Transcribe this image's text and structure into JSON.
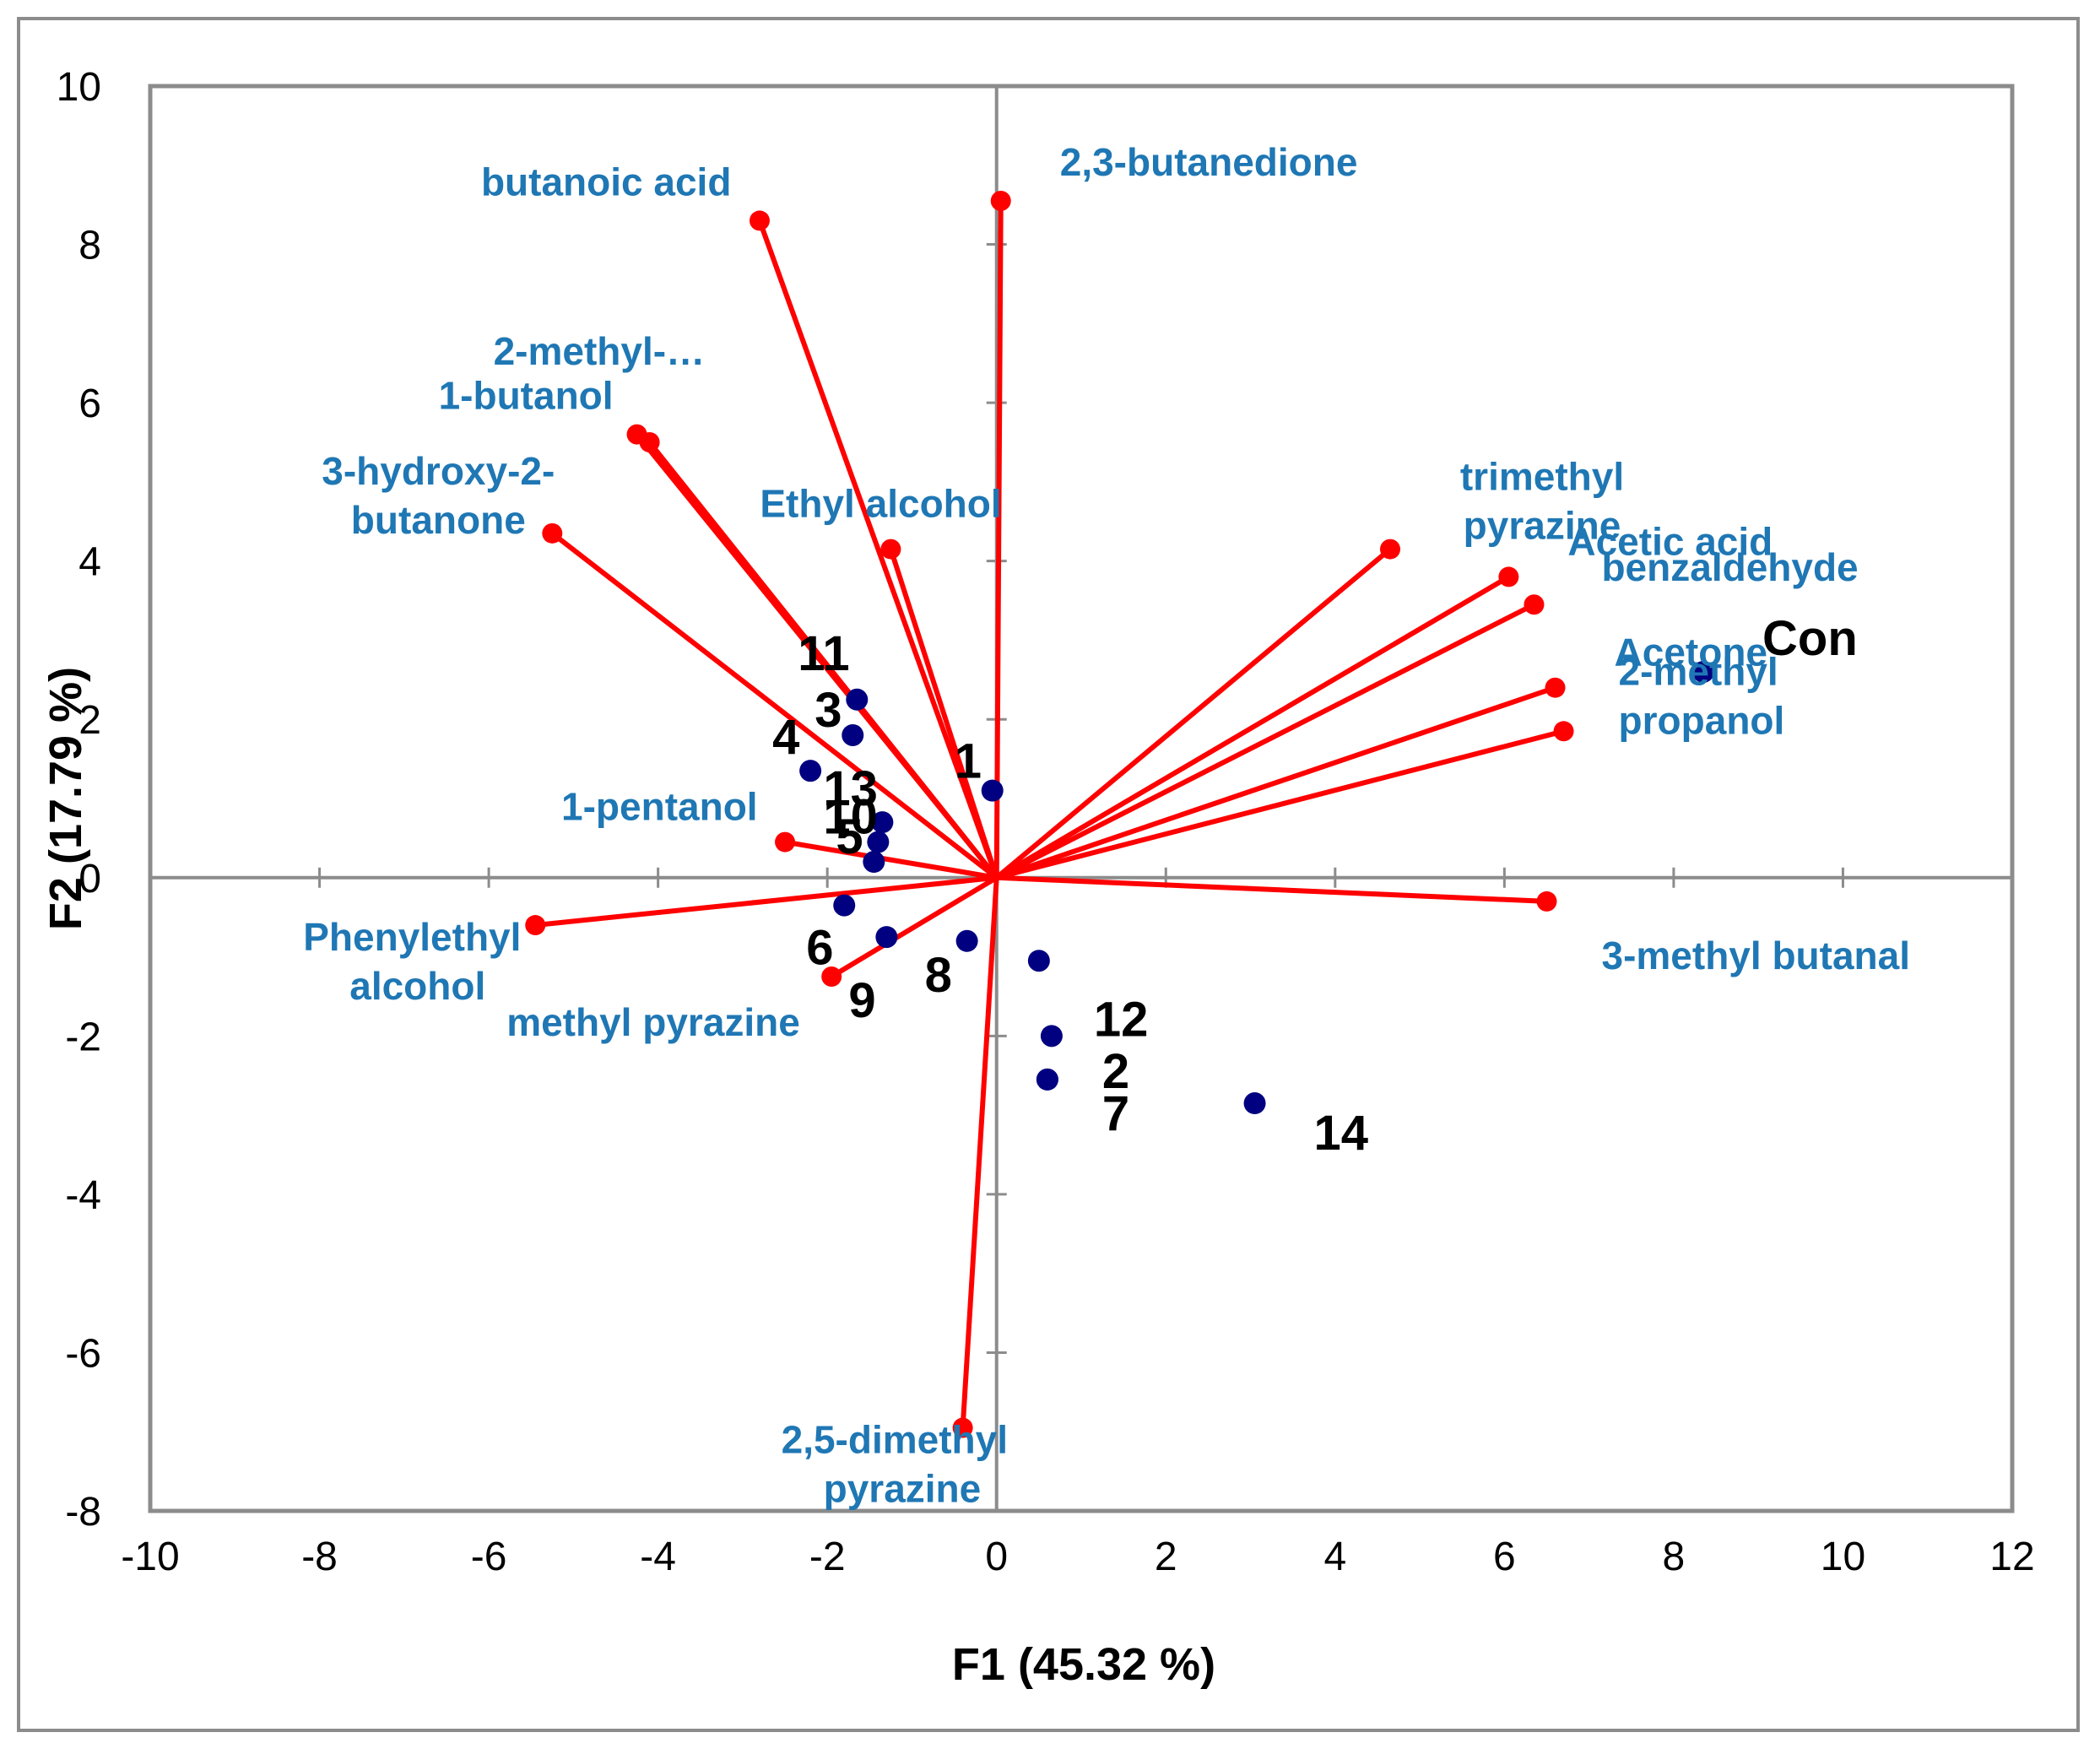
{
  "chart_data": {
    "type": "scatter",
    "subtype": "pca-biplot",
    "title": "",
    "xlabel": "F1 (45.32 %)",
    "ylabel": "F2 (17.79 %)",
    "xlim": [
      -10,
      12
    ],
    "ylim": [
      -8,
      10
    ],
    "xticks": [
      "-10",
      "-8",
      "-6",
      "-4",
      "-2",
      "0",
      "2",
      "4",
      "6",
      "8",
      "10",
      "12"
    ],
    "yticks": [
      "-8",
      "-6",
      "-4",
      "-2",
      "0",
      "2",
      "4",
      "6",
      "8",
      "10"
    ],
    "grid": false,
    "colors": {
      "vector": "#ff0000",
      "observation": "#000080",
      "var_label": "#1f77b4",
      "obs_label": "#000000",
      "frame": "#8c8c8c"
    },
    "variables": [
      {
        "label": "butanoic acid",
        "x": -2.8,
        "y": 8.3
      },
      {
        "label": "2,3-butanedione",
        "x": 0.05,
        "y": 8.55
      },
      {
        "label": "2-methyl-…",
        "x": -4.1,
        "y": 5.5
      },
      {
        "label": "1-butanol",
        "x": -4.25,
        "y": 5.6
      },
      {
        "label": "3-hydroxy-2- butanone",
        "x": -5.25,
        "y": 4.35
      },
      {
        "label": "Ethyl alcohol",
        "x": -1.25,
        "y": 4.15
      },
      {
        "label": "trimethyl pyrazine",
        "x": 4.65,
        "y": 4.15
      },
      {
        "label": "Acetic acid",
        "x": 6.05,
        "y": 3.8
      },
      {
        "label": "benzaldehyde",
        "x": 6.35,
        "y": 3.45
      },
      {
        "label": "Acetone",
        "x": 6.6,
        "y": 2.4
      },
      {
        "label": "2-methyl propanol",
        "x": 6.7,
        "y": 1.85
      },
      {
        "label": "1-pentanol",
        "x": -2.5,
        "y": 0.45
      },
      {
        "label": "Phenylethyl alcohol",
        "x": -5.45,
        "y": -0.6
      },
      {
        "label": "methyl pyrazine",
        "x": -1.95,
        "y": -1.25
      },
      {
        "label": "3-methyl butanal",
        "x": 6.5,
        "y": -0.3
      },
      {
        "label": "2,5-dimethyl pyrazine",
        "x": -0.4,
        "y": -6.95
      }
    ],
    "observations": [
      {
        "label": "Con",
        "x": 8.35,
        "y": 2.6
      },
      {
        "label": "1",
        "x": -0.05,
        "y": 1.1
      },
      {
        "label": "2",
        "x": 0.6,
        "y": -2.55
      },
      {
        "label": "3",
        "x": -1.7,
        "y": 1.8
      },
      {
        "label": "4",
        "x": -2.2,
        "y": 1.35
      },
      {
        "label": "5",
        "x": -1.45,
        "y": 0.2
      },
      {
        "label": "6",
        "x": -1.8,
        "y": -0.35
      },
      {
        "label": "7",
        "x": 0.6,
        "y": -2.55
      },
      {
        "label": "8",
        "x": -0.35,
        "y": -0.8
      },
      {
        "label": "9",
        "x": -1.3,
        "y": -0.75
      },
      {
        "label": "10",
        "x": -1.4,
        "y": 0.45
      },
      {
        "label": "11",
        "x": -1.65,
        "y": 2.25
      },
      {
        "label": "12",
        "x": 0.65,
        "y": -2.0
      },
      {
        "label": "13",
        "x": -1.35,
        "y": 0.7
      },
      {
        "label": "14",
        "x": 3.05,
        "y": -2.85
      },
      {
        "label": "",
        "x": 0.5,
        "y": -1.05
      }
    ]
  }
}
